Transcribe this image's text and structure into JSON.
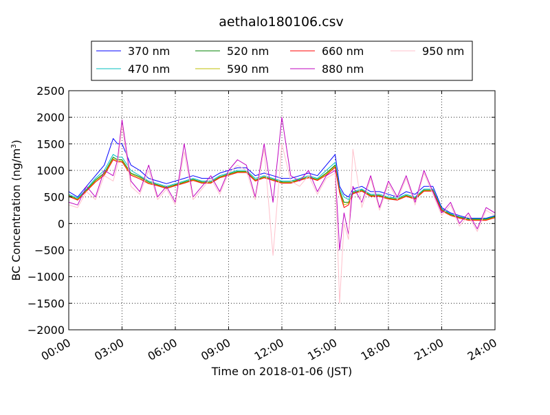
{
  "chart_data": {
    "type": "line",
    "title": "aethalo180106.csv",
    "xlabel": "Time on 2018-01-06 (JST)",
    "ylabel_main": "BC Concentration (ng/m",
    "ylabel_sup": "3",
    "ylabel_close": ")",
    "ylim": [
      -2000,
      2500
    ],
    "xlim_hours": [
      0,
      24
    ],
    "x_ticks": [
      {
        "value": 0,
        "label": "00:00"
      },
      {
        "value": 3,
        "label": "03:00"
      },
      {
        "value": 6,
        "label": "06:00"
      },
      {
        "value": 9,
        "label": "09:00"
      },
      {
        "value": 12,
        "label": "12:00"
      },
      {
        "value": 15,
        "label": "15:00"
      },
      {
        "value": 18,
        "label": "18:00"
      },
      {
        "value": 21,
        "label": "21:00"
      },
      {
        "value": 24,
        "label": "24:00"
      }
    ],
    "y_ticks": [
      {
        "value": 2500,
        "label": "2500"
      },
      {
        "value": 2000,
        "label": "2000"
      },
      {
        "value": 1500,
        "label": "1500"
      },
      {
        "value": 1000,
        "label": "1000"
      },
      {
        "value": 500,
        "label": "500"
      },
      {
        "value": 0,
        "label": "0"
      },
      {
        "value": -500,
        "label": "−500"
      },
      {
        "value": -1000,
        "label": "−1000"
      },
      {
        "value": -1500,
        "label": "−1500"
      },
      {
        "value": -2000,
        "label": "−2000"
      }
    ],
    "grid": true,
    "legend_position": "top",
    "x": [
      0,
      0.5,
      1,
      1.5,
      2,
      2.5,
      2.75,
      3,
      3.5,
      4,
      4.5,
      5,
      5.5,
      6,
      6.5,
      7,
      7.5,
      8,
      8.5,
      9,
      9.5,
      10,
      10.5,
      11,
      11.5,
      12,
      12.5,
      13,
      13.5,
      14,
      14.5,
      15,
      15.25,
      15.5,
      15.75,
      16,
      16.5,
      17,
      17.5,
      18,
      18.5,
      19,
      19.5,
      20,
      20.5,
      21,
      21.5,
      22,
      22.5,
      23,
      23.5,
      24
    ],
    "series": [
      {
        "name": "370 nm",
        "color": "#0000ff",
        "values": [
          600,
          500,
          700,
          900,
          1100,
          1600,
          1500,
          1500,
          1100,
          1000,
          850,
          800,
          750,
          800,
          850,
          900,
          850,
          850,
          950,
          1000,
          1050,
          1050,
          900,
          950,
          900,
          850,
          850,
          900,
          950,
          900,
          1100,
          1300,
          700,
          550,
          500,
          650,
          700,
          600,
          600,
          550,
          500,
          600,
          550,
          700,
          700,
          300,
          200,
          150,
          100,
          100,
          100,
          150
        ]
      },
      {
        "name": "470 nm",
        "color": "#00bfbf",
        "values": [
          550,
          480,
          650,
          850,
          1000,
          1300,
          1250,
          1250,
          1000,
          900,
          800,
          750,
          700,
          750,
          800,
          850,
          800,
          800,
          900,
          950,
          1000,
          1000,
          850,
          900,
          850,
          800,
          800,
          850,
          900,
          850,
          1000,
          1150,
          650,
          500,
          450,
          600,
          650,
          550,
          550,
          500,
          480,
          550,
          500,
          650,
          650,
          280,
          180,
          130,
          90,
          90,
          90,
          140
        ]
      },
      {
        "name": "520 nm",
        "color": "#008000",
        "values": [
          530,
          460,
          630,
          820,
          950,
          1250,
          1200,
          1200,
          950,
          880,
          780,
          730,
          680,
          730,
          780,
          830,
          780,
          780,
          880,
          930,
          980,
          980,
          820,
          880,
          830,
          780,
          780,
          830,
          880,
          830,
          950,
          1100,
          620,
          400,
          400,
          580,
          630,
          530,
          530,
          480,
          460,
          530,
          480,
          630,
          630,
          260,
          170,
          120,
          80,
          80,
          80,
          130
        ]
      },
      {
        "name": "590 nm",
        "color": "#bfbf00",
        "values": [
          520,
          450,
          620,
          800,
          930,
          1220,
          1180,
          1180,
          930,
          860,
          760,
          720,
          670,
          720,
          770,
          820,
          770,
          770,
          870,
          920,
          970,
          970,
          810,
          870,
          820,
          770,
          770,
          820,
          870,
          820,
          930,
          1080,
          600,
          350,
          380,
          570,
          620,
          520,
          520,
          470,
          450,
          520,
          470,
          620,
          620,
          250,
          160,
          110,
          70,
          70,
          70,
          120
        ]
      },
      {
        "name": "660 nm",
        "color": "#ff0000",
        "values": [
          510,
          440,
          610,
          780,
          910,
          1200,
          1160,
          1160,
          910,
          840,
          750,
          710,
          660,
          710,
          760,
          810,
          760,
          760,
          860,
          910,
          960,
          960,
          800,
          860,
          810,
          760,
          760,
          810,
          860,
          810,
          910,
          1060,
          580,
          300,
          350,
          560,
          610,
          510,
          510,
          460,
          440,
          510,
          460,
          610,
          610,
          240,
          150,
          100,
          60,
          60,
          60,
          110
        ]
      },
      {
        "name": "880 nm",
        "color": "#bf00bf",
        "values": [
          400,
          350,
          700,
          500,
          1000,
          900,
          1200,
          1950,
          800,
          600,
          1100,
          500,
          700,
          400,
          1500,
          500,
          700,
          900,
          600,
          1000,
          1200,
          1100,
          500,
          1500,
          400,
          2000,
          900,
          800,
          1000,
          600,
          900,
          1000,
          -500,
          200,
          -200,
          700,
          400,
          900,
          300,
          800,
          500,
          900,
          400,
          1000,
          600,
          200,
          400,
          0,
          200,
          -100,
          300,
          200
        ]
      },
      {
        "name": "950 nm",
        "color": "#ffc0cb",
        "values": [
          350,
          300,
          600,
          450,
          900,
          800,
          1100,
          1850,
          700,
          550,
          1000,
          450,
          650,
          350,
          1350,
          450,
          650,
          850,
          550,
          950,
          1100,
          1000,
          450,
          1400,
          -600,
          1500,
          800,
          700,
          900,
          550,
          850,
          950,
          -1500,
          0,
          -300,
          1400,
          300,
          850,
          250,
          750,
          450,
          850,
          350,
          950,
          550,
          150,
          350,
          -50,
          150,
          -150,
          250,
          150
        ]
      }
    ]
  }
}
